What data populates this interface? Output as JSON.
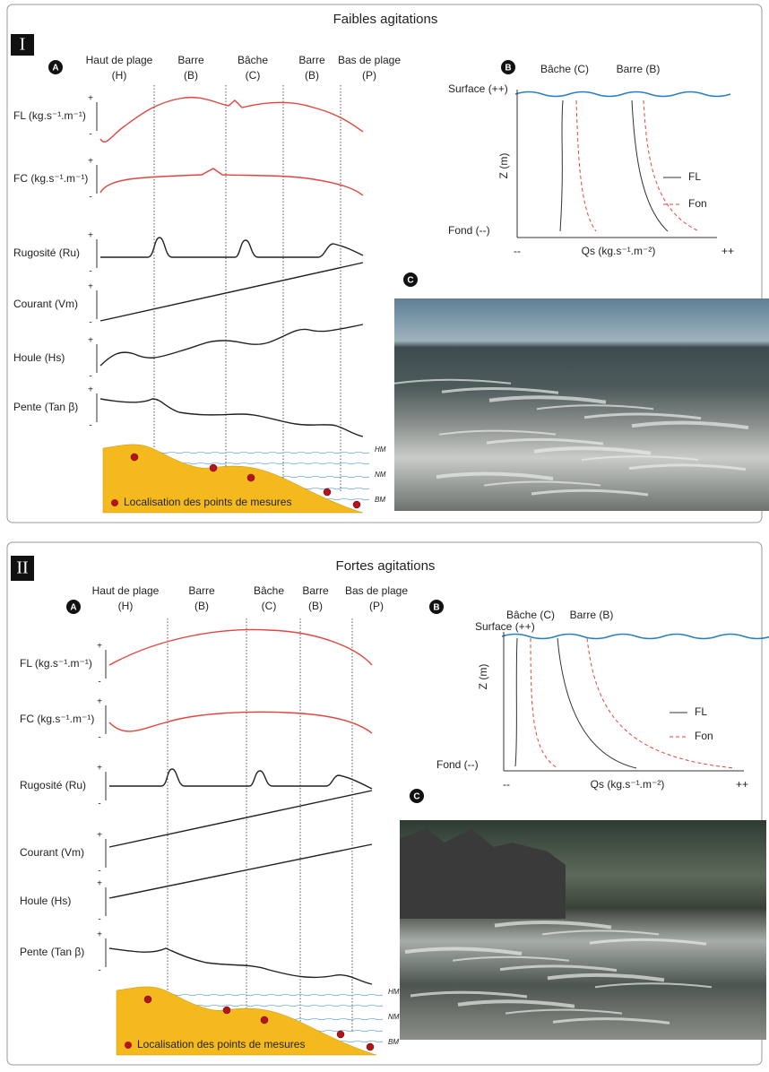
{
  "panels": [
    {
      "numeral": "I",
      "title": "Faibles agitations",
      "a": {
        "label": "A",
        "zones": [
          {
            "name": "Haut de plage",
            "code": "(H)"
          },
          {
            "name": "Barre",
            "code": "(B)"
          },
          {
            "name": "Bâche",
            "code": "(C)"
          },
          {
            "name": "Barre",
            "code": "(B)"
          },
          {
            "name": "Bas de plage",
            "code": "(P)"
          }
        ],
        "rows": [
          "FL (kg.s⁻¹.m⁻¹)",
          "FC (kg.s⁻¹.m⁻¹)",
          "Rugosité (Ru)",
          "Courant (Vm)",
          "Houle (Hs)",
          "Pente (Tan β)"
        ],
        "plus": "+",
        "minus": "-",
        "levels": [
          "HM",
          "NM",
          "BM"
        ],
        "legend": "Localisation des points de mesures"
      },
      "b": {
        "label": "B",
        "columns": [
          "Bâche (C)",
          "Barre (B)"
        ],
        "surface": "Surface (++)",
        "bottom": "Fond (--)",
        "y_axis": "Z (m)",
        "x_axis": "Qs (kg.s⁻¹.m⁻²)",
        "x_min": "--",
        "x_max": "++",
        "legend": [
          "FL",
          "Fon"
        ]
      },
      "c": {
        "label": "C"
      }
    },
    {
      "numeral": "II",
      "title": "Fortes agitations",
      "a": {
        "label": "A",
        "zones": [
          {
            "name": "Haut de plage",
            "code": "(H)"
          },
          {
            "name": "Barre",
            "code": "(B)"
          },
          {
            "name": "Bâche",
            "code": "(C)"
          },
          {
            "name": "Barre",
            "code": "(B)"
          },
          {
            "name": "Bas de plage",
            "code": "(P)"
          }
        ],
        "rows": [
          "FL (kg.s⁻¹.m⁻¹)",
          "FC (kg.s⁻¹.m⁻¹)",
          "Rugosité (Ru)",
          "Courant (Vm)",
          "Houle (Hs)",
          "Pente (Tan β)"
        ],
        "plus": "+",
        "minus": "-",
        "levels": [
          "HM",
          "NM",
          "BM"
        ],
        "legend": "Localisation des points de mesures"
      },
      "b": {
        "label": "B",
        "columns": [
          "Bâche (C)",
          "Barre (B)"
        ],
        "surface": "Surface (++)",
        "bottom": "Fond (--)",
        "y_axis": "Z (m)",
        "x_axis": "Qs (kg.s⁻¹.m⁻²)",
        "x_min": "--",
        "x_max": "++",
        "legend": [
          "FL",
          "Fon"
        ]
      },
      "c": {
        "label": "C"
      }
    }
  ]
}
